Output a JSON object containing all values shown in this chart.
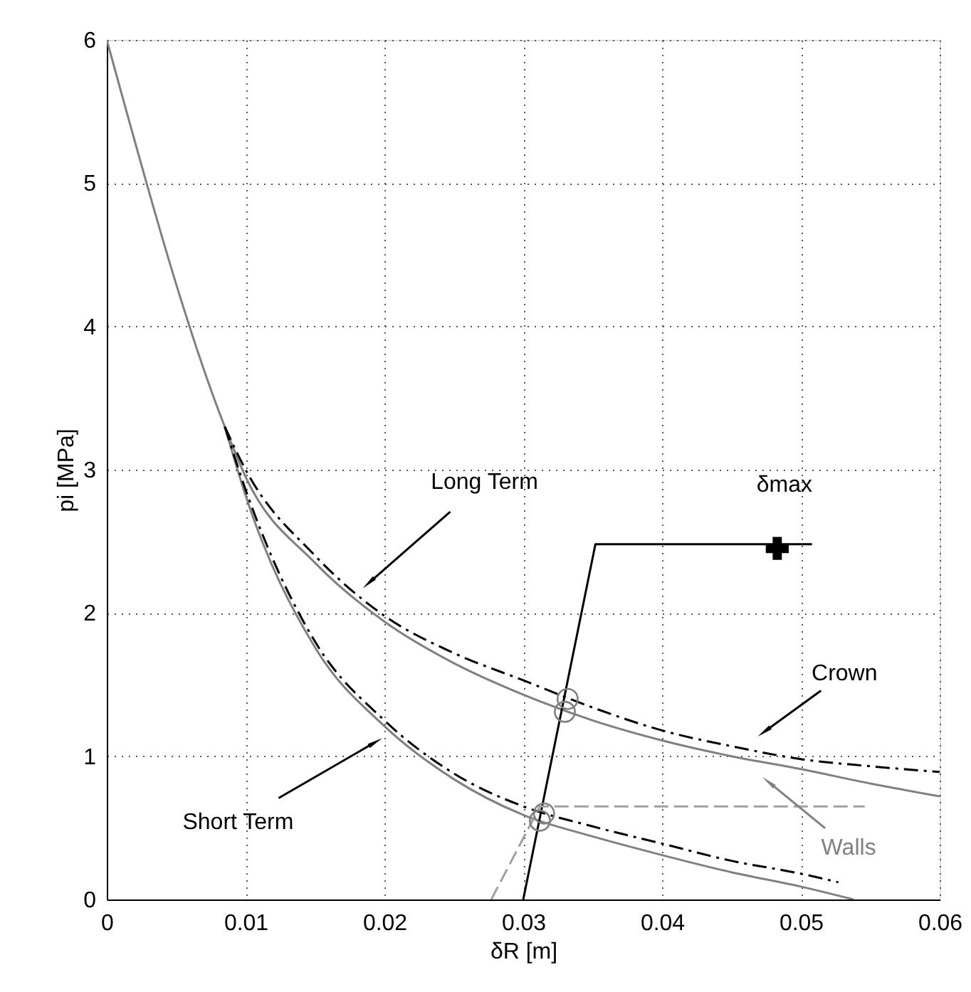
{
  "chart_data": {
    "type": "line",
    "xlabel": "δR [m]",
    "ylabel": "pi [MPa]",
    "xlim": [
      0,
      0.06
    ],
    "ylim": [
      0,
      6
    ],
    "xticks": [
      0,
      0.01,
      0.02,
      0.03,
      0.04,
      0.05,
      0.06
    ],
    "yticks": [
      0,
      1,
      2,
      3,
      4,
      5,
      6
    ],
    "grid": true,
    "series": [
      {
        "color": "#808080",
        "line_style": "solid",
        "x": [
          0,
          0.0085,
          0.01,
          0.015,
          0.02,
          0.025,
          0.03,
          0.035,
          0.04,
          0.045,
          0.05,
          0.055,
          0.06
        ],
        "values": [
          6,
          3.3,
          2.95,
          2.35,
          1.94,
          1.65,
          1.43,
          1.25,
          1.11,
          1.0,
          0.91,
          0.81,
          0.72
        ]
      },
      {
        "color": "#000000",
        "line_style": "dashdot",
        "x": [
          0.0085,
          0.01,
          0.015,
          0.02,
          0.025,
          0.03,
          0.035,
          0.04,
          0.045,
          0.05,
          0.055,
          0.06
        ],
        "values": [
          3.3,
          3.0,
          2.4,
          1.98,
          1.72,
          1.53,
          1.34,
          1.18,
          1.07,
          0.98,
          0.93,
          0.89
        ]
      },
      {
        "color": "#808080",
        "line_style": "solid",
        "x": [
          0.0085,
          0.01,
          0.015,
          0.02,
          0.025,
          0.03,
          0.035,
          0.04,
          0.045,
          0.05,
          0.0538
        ],
        "values": [
          3.3,
          2.82,
          1.76,
          1.21,
          0.84,
          0.59,
          0.44,
          0.31,
          0.19,
          0.09,
          0
        ]
      },
      {
        "color": "#000000",
        "line_style": "dashdot",
        "x": [
          0.0085,
          0.01,
          0.015,
          0.02,
          0.025,
          0.03,
          0.035,
          0.04,
          0.045,
          0.05,
          0.0527
        ],
        "values": [
          3.3,
          2.86,
          1.8,
          1.25,
          0.88,
          0.65,
          0.51,
          0.39,
          0.27,
          0.18,
          0.12
        ]
      },
      {
        "color": "#000000",
        "line_style": "solid",
        "x": [
          0.03,
          0.0352,
          0.0508
        ],
        "values": [
          0,
          2.48,
          2.48
        ]
      },
      {
        "color": "#a0a0a0",
        "line_style": "dashed",
        "x": [
          0.0277,
          0.0312,
          0.0546
        ],
        "values": [
          0,
          0.65,
          0.65
        ]
      },
      {
        "type": "scatter",
        "color": "#808080",
        "marker": "circle",
        "x": [
          0.0332,
          0.033,
          0.0315,
          0.0312
        ],
        "values": [
          1.4,
          1.31,
          0.6,
          0.55
        ]
      },
      {
        "type": "scatter",
        "color": "#000000",
        "marker": "cross",
        "x": [
          0.0483
        ],
        "values": [
          2.45
        ]
      }
    ],
    "annotations": [
      {
        "text": "Long Term",
        "x": 0.019,
        "y": 2.22
      },
      {
        "text": "Short Term",
        "x": 0.0192,
        "y": 1.09
      },
      {
        "text": "Crown",
        "x": 0.0475,
        "y": 1.18
      },
      {
        "text": "Walls",
        "x": 0.0478,
        "y": 0.81
      },
      {
        "text": "δmax",
        "x": 0.0483,
        "y": 2.45
      }
    ]
  }
}
